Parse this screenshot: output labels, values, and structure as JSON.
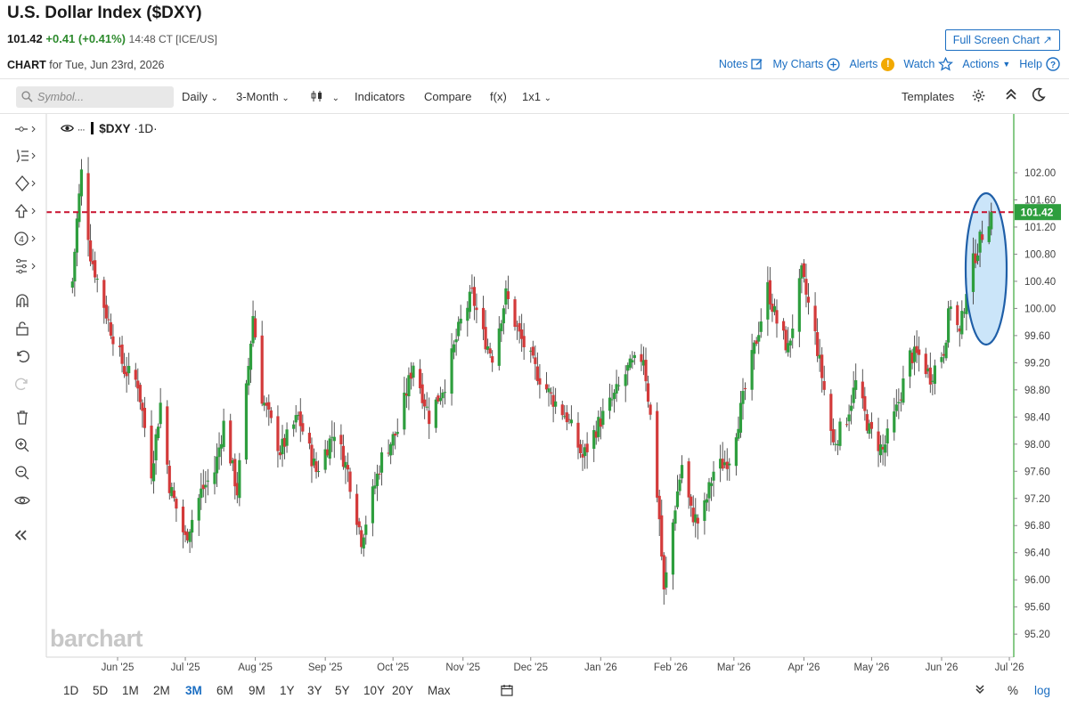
{
  "header": {
    "title": "U.S. Dollar Index ($DXY)",
    "last": "101.42",
    "change": "+0.41 (+0.41%)",
    "time": "14:48 CT [ICE/US]",
    "full_screen": "Full Screen Chart",
    "chart_label": "CHART",
    "chart_for": "for Tue, Jun 23rd, 2026"
  },
  "nav": {
    "notes": "Notes",
    "my_charts": "My Charts",
    "alerts": "Alerts",
    "alert_badge": "!",
    "watch": "Watch",
    "actions": "Actions",
    "help": "Help"
  },
  "toolbar": {
    "symbol_placeholder": "Symbol...",
    "interval": "Daily",
    "period": "3-Month",
    "indicators": "Indicators",
    "compare": "Compare",
    "fx": "f(x)",
    "layout": "1x1",
    "templates": "Templates"
  },
  "chart_header": {
    "symbol": "$DXY",
    "interval": "·1D·"
  },
  "watermark": "barchart",
  "ranges": [
    "1D",
    "5D",
    "1M",
    "2M",
    "3M",
    "6M",
    "9M",
    "1Y",
    "3Y",
    "5Y",
    "10Y",
    "20Y",
    "Max"
  ],
  "range_active": "3M",
  "range_extras": {
    "percent": "%",
    "log": "log"
  },
  "colors": {
    "up": "#2e9e3e",
    "down": "#d33a3a",
    "accent": "#1b6ec2",
    "price_line": "#c8102e",
    "highlight": "#b9dcf7"
  },
  "chart_data": {
    "type": "candlestick",
    "symbol": "$DXY",
    "interval": "1D",
    "last_price": 101.42,
    "price_line": 101.42,
    "ylim": [
      95.0,
      102.6
    ],
    "yticks": [
      95.2,
      95.6,
      96.0,
      96.4,
      96.8,
      97.2,
      97.6,
      98.0,
      98.4,
      98.8,
      99.2,
      99.6,
      100.0,
      100.4,
      100.8,
      101.2,
      101.6,
      102.0
    ],
    "xticks": [
      "Jun '25",
      "Jul '25",
      "Aug '25",
      "Sep '25",
      "Oct '25",
      "Nov '25",
      "Dec '25",
      "Jan '26",
      "Feb '26",
      "Mar '26",
      "Apr '26",
      "May '26",
      "Jun '26",
      "Jul '26"
    ],
    "close_path": [
      [
        "2025-05-12",
        100.4
      ],
      [
        "2025-05-14",
        101.3
      ],
      [
        "2025-05-16",
        102.0
      ],
      [
        "2025-05-20",
        100.8
      ],
      [
        "2025-05-28",
        99.8
      ],
      [
        "2025-06-04",
        99.1
      ],
      [
        "2025-06-10",
        98.9
      ],
      [
        "2025-06-16",
        97.6
      ],
      [
        "2025-06-20",
        98.6
      ],
      [
        "2025-06-24",
        97.4
      ],
      [
        "2025-07-01",
        96.6
      ],
      [
        "2025-07-08",
        97.3
      ],
      [
        "2025-07-14",
        97.6
      ],
      [
        "2025-07-18",
        98.3
      ],
      [
        "2025-07-24",
        97.3
      ],
      [
        "2025-07-31",
        99.9
      ],
      [
        "2025-08-04",
        98.7
      ],
      [
        "2025-08-12",
        97.9
      ],
      [
        "2025-08-20",
        98.4
      ],
      [
        "2025-08-28",
        97.6
      ],
      [
        "2025-09-05",
        98.2
      ],
      [
        "2025-09-11",
        97.6
      ],
      [
        "2025-09-17",
        96.6
      ],
      [
        "2025-09-26",
        97.8
      ],
      [
        "2025-10-03",
        98.2
      ],
      [
        "2025-10-10",
        99.2
      ],
      [
        "2025-10-17",
        98.4
      ],
      [
        "2025-10-24",
        98.9
      ],
      [
        "2025-10-31",
        99.8
      ],
      [
        "2025-11-05",
        100.2
      ],
      [
        "2025-11-10",
        99.6
      ],
      [
        "2025-11-14",
        99.3
      ],
      [
        "2025-11-20",
        100.2
      ],
      [
        "2025-11-26",
        99.6
      ],
      [
        "2025-12-03",
        99.1
      ],
      [
        "2025-12-10",
        98.7
      ],
      [
        "2025-12-17",
        98.4
      ],
      [
        "2025-12-24",
        97.8
      ],
      [
        "2025-12-31",
        98.3
      ],
      [
        "2026-01-07",
        98.7
      ],
      [
        "2026-01-13",
        99.1
      ],
      [
        "2026-01-20",
        99.3
      ],
      [
        "2026-01-23",
        98.4
      ],
      [
        "2026-01-27",
        96.9
      ],
      [
        "2026-01-29",
        95.8
      ],
      [
        "2026-02-03",
        97.1
      ],
      [
        "2026-02-06",
        97.7
      ],
      [
        "2026-02-10",
        97.0
      ],
      [
        "2026-02-14",
        96.8
      ],
      [
        "2026-02-20",
        97.6
      ],
      [
        "2026-02-27",
        97.8
      ],
      [
        "2026-03-04",
        98.5
      ],
      [
        "2026-03-10",
        99.4
      ],
      [
        "2026-03-16",
        100.3
      ],
      [
        "2026-03-20",
        99.8
      ],
      [
        "2026-03-25",
        99.4
      ],
      [
        "2026-03-31",
        100.5
      ],
      [
        "2026-04-06",
        99.6
      ],
      [
        "2026-04-10",
        98.8
      ],
      [
        "2026-04-14",
        98.0
      ],
      [
        "2026-04-20",
        98.4
      ],
      [
        "2026-04-24",
        98.9
      ],
      [
        "2026-04-30",
        98.2
      ],
      [
        "2026-05-06",
        97.9
      ],
      [
        "2026-05-12",
        98.5
      ],
      [
        "2026-05-18",
        99.3
      ],
      [
        "2026-05-22",
        99.3
      ],
      [
        "2026-05-27",
        99.0
      ],
      [
        "2026-06-02",
        99.4
      ],
      [
        "2026-06-05",
        100.1
      ],
      [
        "2026-06-09",
        99.6
      ],
      [
        "2026-06-12",
        100.3
      ],
      [
        "2026-06-16",
        100.8
      ],
      [
        "2026-06-19",
        101.1
      ],
      [
        "2026-06-23",
        101.42
      ]
    ],
    "annotations": [
      "ellipse highlight around June 2026 rally",
      "dashed horizontal line at 101.42"
    ],
    "grid": false,
    "legend": "none"
  }
}
